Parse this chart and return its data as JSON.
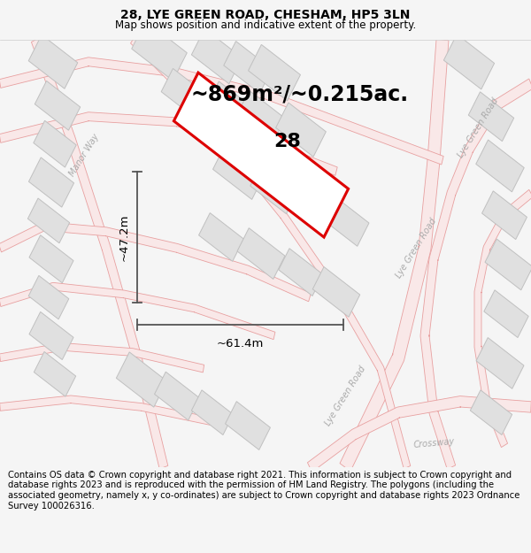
{
  "title": "28, LYE GREEN ROAD, CHESHAM, HP5 3LN",
  "subtitle": "Map shows position and indicative extent of the property.",
  "area_label": "~869m²/~0.215ac.",
  "property_number": "28",
  "dim_height": "~47.2m",
  "dim_width": "~61.4m",
  "footer": "Contains OS data © Crown copyright and database right 2021. This information is subject to Crown copyright and database rights 2023 and is reproduced with the permission of HM Land Registry. The polygons (including the associated geometry, namely x, y co-ordinates) are subject to Crown copyright and database rights 2023 Ordnance Survey 100026316.",
  "bg_color": "#f5f5f5",
  "map_bg": "#ffffff",
  "road_line_color": "#e8a0a0",
  "road_fill_color": "#f9e8e8",
  "building_fill": "#e0e0e0",
  "building_edge": "#c0c0c0",
  "plot_color": "#dd0000",
  "plot_fill": "#ffffff",
  "dim_color": "#555555",
  "label_road_color": "#aaaaaa",
  "title_fontsize": 10,
  "subtitle_fontsize": 8.5,
  "area_fontsize": 17,
  "number_fontsize": 16,
  "dim_fontsize": 9.5,
  "road_label_fontsize": 7,
  "footer_fontsize": 7.2
}
